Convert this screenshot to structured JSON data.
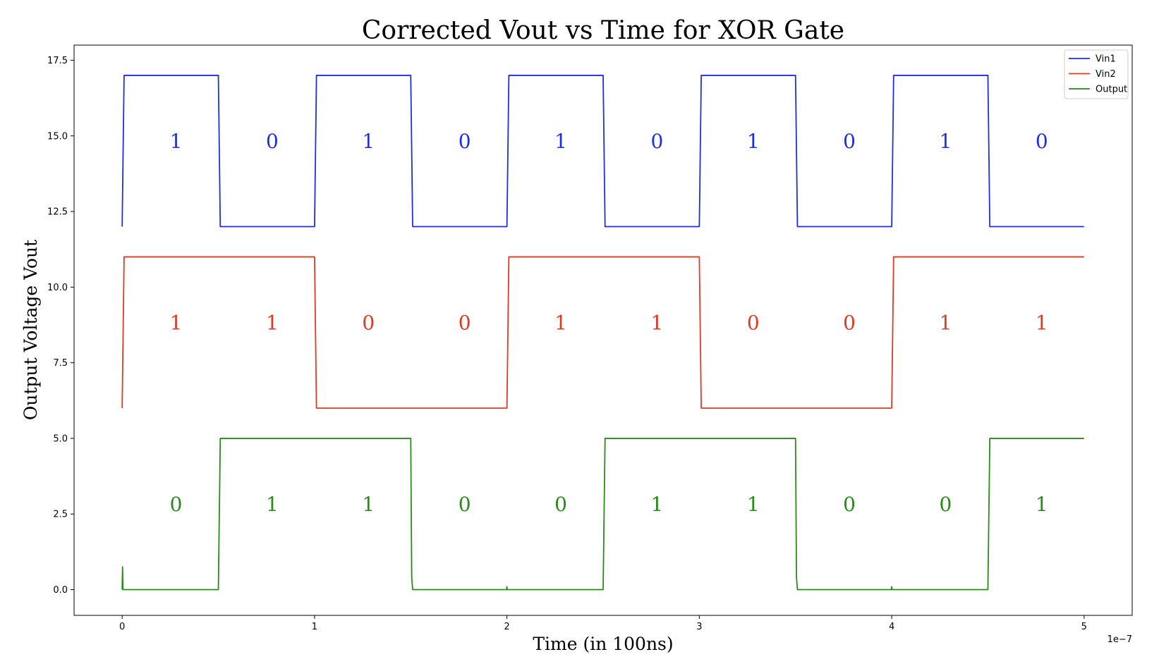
{
  "chart_data": {
    "type": "line",
    "title": "Corrected Vout vs Time for XOR Gate",
    "xlabel": "Time (in 100ns)",
    "ylabel": "Output Voltage Vout",
    "x_offset_text": "1e−7",
    "xlim": [
      -0.25,
      5.25
    ],
    "ylim": [
      -0.85,
      18.0
    ],
    "x_ticks": [
      0,
      1,
      2,
      3,
      4,
      5
    ],
    "x_tick_labels": [
      "0",
      "1",
      "2",
      "3",
      "4",
      "5"
    ],
    "y_ticks": [
      0.0,
      2.5,
      5.0,
      7.5,
      10.0,
      12.5,
      15.0,
      17.5
    ],
    "y_tick_labels": [
      "0.0",
      "2.5",
      "5.0",
      "7.5",
      "10.0",
      "12.5",
      "15.0",
      "17.5"
    ],
    "grid": false,
    "legend_position": "top-right",
    "series": [
      {
        "name": "Vin1",
        "color": "#1f2fe0",
        "points": [
          [
            0,
            12
          ],
          [
            0.01,
            17
          ],
          [
            0.5,
            17
          ],
          [
            0.51,
            12
          ],
          [
            1.0,
            12
          ],
          [
            1.01,
            17
          ],
          [
            1.5,
            17
          ],
          [
            1.51,
            12
          ],
          [
            2.0,
            12
          ],
          [
            2.01,
            17
          ],
          [
            2.5,
            17
          ],
          [
            2.51,
            12
          ],
          [
            3.0,
            12
          ],
          [
            3.01,
            17
          ],
          [
            3.5,
            17
          ],
          [
            3.51,
            12
          ],
          [
            4.0,
            12
          ],
          [
            4.01,
            17
          ],
          [
            4.5,
            17
          ],
          [
            4.51,
            12
          ],
          [
            5.0,
            12
          ]
        ],
        "bits": [
          "1",
          "0",
          "1",
          "0",
          "1",
          "0",
          "1",
          "0",
          "1",
          "0"
        ],
        "bit_y": 14.6
      },
      {
        "name": "Vin2",
        "color": "#e03a22",
        "points": [
          [
            0,
            6
          ],
          [
            0.01,
            11
          ],
          [
            1.0,
            11
          ],
          [
            1.01,
            6
          ],
          [
            2.0,
            6
          ],
          [
            2.01,
            11
          ],
          [
            3.0,
            11
          ],
          [
            3.01,
            6
          ],
          [
            4.0,
            6
          ],
          [
            4.01,
            11
          ],
          [
            5.0,
            11
          ]
        ],
        "bits": [
          "1",
          "1",
          "0",
          "0",
          "1",
          "1",
          "0",
          "0",
          "1",
          "1"
        ],
        "bit_y": 8.6
      },
      {
        "name": "Output",
        "color": "#2a8a1a",
        "points": [
          [
            0,
            0.0
          ],
          [
            0.002,
            0.75
          ],
          [
            0.004,
            0.0
          ],
          [
            0.5,
            0.0
          ],
          [
            0.51,
            5
          ],
          [
            1.5,
            5
          ],
          [
            1.505,
            0.4
          ],
          [
            1.51,
            0.0
          ],
          [
            1.998,
            0.0
          ],
          [
            2.0,
            0.1
          ],
          [
            2.002,
            0.0
          ],
          [
            2.5,
            0.0
          ],
          [
            2.51,
            5
          ],
          [
            3.5,
            5
          ],
          [
            3.505,
            0.4
          ],
          [
            3.51,
            0.0
          ],
          [
            3.998,
            0.0
          ],
          [
            4.0,
            0.1
          ],
          [
            4.002,
            0.0
          ],
          [
            4.5,
            0.0
          ],
          [
            4.51,
            5
          ],
          [
            5.0,
            5
          ]
        ],
        "bits": [
          "0",
          "1",
          "1",
          "0",
          "0",
          "1",
          "1",
          "0",
          "0",
          "1"
        ],
        "bit_y": 2.6
      }
    ],
    "bit_x": [
      0.28,
      0.78,
      1.28,
      1.78,
      2.28,
      2.78,
      3.28,
      3.78,
      4.28,
      4.78
    ]
  }
}
